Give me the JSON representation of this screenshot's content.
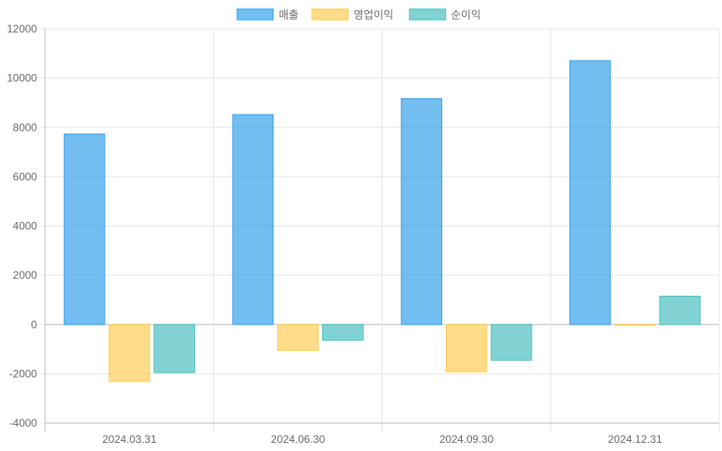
{
  "chart_data": {
    "type": "bar",
    "categories": [
      "2024.03.31",
      "2024.06.30",
      "2024.09.30",
      "2024.12.31"
    ],
    "series": [
      {
        "name": "매출",
        "values": [
          7730,
          8520,
          9170,
          10710
        ],
        "fill": "#36A2EB",
        "stroke": "#36A2EB"
      },
      {
        "name": "영업이익",
        "values": [
          -2310,
          -1050,
          -1920,
          -30
        ],
        "fill": "#FFCD56",
        "stroke": "#FFCD56"
      },
      {
        "name": "순이익",
        "values": [
          -1950,
          -640,
          -1450,
          1150
        ],
        "fill": "#4BC0C0",
        "stroke": "#4BC0C0"
      }
    ],
    "ylim": [
      -4000,
      12000
    ],
    "yticks": [
      -4000,
      -2000,
      0,
      2000,
      4000,
      6000,
      8000,
      10000,
      12000
    ],
    "grid": true,
    "legend": "top-center",
    "colors": {
      "grid": "#e5e5e5",
      "axis": "#bbbbbb",
      "text": "#666666"
    }
  }
}
